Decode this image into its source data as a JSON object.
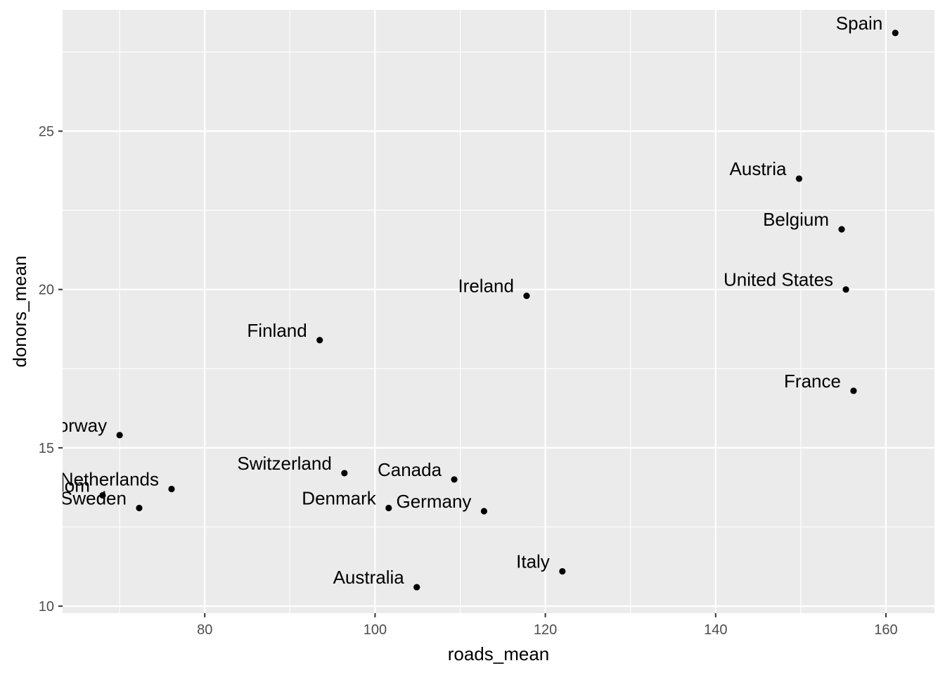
{
  "chart_data": {
    "type": "scatter",
    "title": "",
    "xlabel": "roads_mean",
    "ylabel": "donors_mean",
    "xlim": [
      63.3,
      165.7
    ],
    "ylim": [
      9.78,
      28.83
    ],
    "x_ticks": [
      80,
      100,
      120,
      140,
      160
    ],
    "y_ticks": [
      10,
      15,
      20,
      25
    ],
    "grid": true,
    "legend": "none",
    "colors": {
      "panel": "#ebebeb",
      "grid_major": "#ffffff",
      "point": "#000000",
      "tick_text": "#4d4d4d"
    },
    "points": [
      {
        "label": "Spain",
        "x": 161.1,
        "y": 28.1
      },
      {
        "label": "Austria",
        "x": 149.8,
        "y": 23.5
      },
      {
        "label": "Belgium",
        "x": 154.8,
        "y": 21.9
      },
      {
        "label": "United States",
        "x": 155.3,
        "y": 20.0
      },
      {
        "label": "Ireland",
        "x": 117.8,
        "y": 19.8
      },
      {
        "label": "Finland",
        "x": 93.5,
        "y": 18.4
      },
      {
        "label": "France",
        "x": 156.2,
        "y": 16.8
      },
      {
        "label": "Norway",
        "x": 70.0,
        "y": 15.4
      },
      {
        "label": "Switzerland",
        "x": 96.4,
        "y": 14.2
      },
      {
        "label": "Canada",
        "x": 109.3,
        "y": 14.0
      },
      {
        "label": "Netherlands",
        "x": 76.1,
        "y": 13.7
      },
      {
        "label": "Sweden",
        "x": 72.3,
        "y": 13.1
      },
      {
        "label": "Denmark",
        "x": 101.6,
        "y": 13.1
      },
      {
        "label": "Germany",
        "x": 112.8,
        "y": 13.0
      },
      {
        "label": "United Kingdom",
        "x": 68.0,
        "y": 13.5
      },
      {
        "label": "Italy",
        "x": 122.0,
        "y": 11.1
      },
      {
        "label": "Australia",
        "x": 104.9,
        "y": 10.6
      }
    ]
  }
}
